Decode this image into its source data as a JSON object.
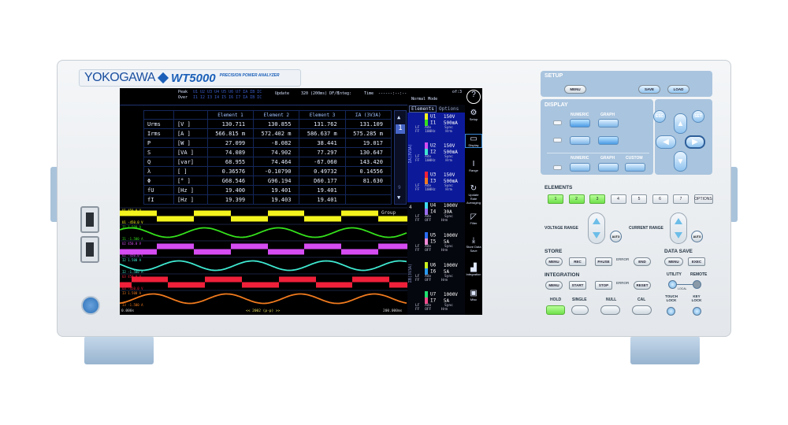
{
  "brand": {
    "logo": "YOKOGAWA",
    "model": "WT5000",
    "tagline": "PRECISION POWER ANALYZER"
  },
  "screen": {
    "header": {
      "peak_label": "Peak",
      "over_label": "Over",
      "peak_codes": "U1 U2 U3 U4 U5 U6 U7 ΣA ΣB ΣC",
      "over_codes": "I1 I2 I3 I4 I5 I6 I7 ΣA ΣB ΣC",
      "update_label": "Update",
      "update_value": "320 (200ms) DF/F",
      "integ_label": "Integ:",
      "time_label": "Time",
      "time_value": "------:--:--",
      "mode": "Normal Mode",
      "page": "of:3"
    },
    "table": {
      "columns": [
        "Element 1",
        "Element 2",
        "Element 3",
        "ΣA (3V3A)"
      ],
      "rows": [
        {
          "name": "Urms",
          "unit": "[V  ]",
          "values": [
            "130.711",
            "130.855",
            "131.762",
            "131.109"
          ]
        },
        {
          "name": "Irms",
          "unit": "[A  ]",
          "values": [
            "566.815 m",
            "572.402 m",
            "586.637 m",
            "575.285 m"
          ]
        },
        {
          "name": "P",
          "unit": "[W  ]",
          "values": [
            "27.099",
            "-8.082",
            "38.441",
            "19.017"
          ]
        },
        {
          "name": "S",
          "unit": "[VA ]",
          "values": [
            "74.089",
            "74.902",
            "77.297",
            "130.647"
          ]
        },
        {
          "name": "Q",
          "unit": "[var]",
          "values": [
            "68.955",
            "74.464",
            "-67.060",
            "143.420"
          ]
        },
        {
          "name": "λ",
          "unit": "[   ]",
          "values": [
            "0.36576",
            "-0.10790",
            "0.49732",
            "0.14556"
          ]
        },
        {
          "name": "Φ",
          "unit": "[°  ]",
          "values": [
            "G68.546",
            "G96.194",
            "D60.177",
            "81.630"
          ]
        },
        {
          "name": "fU",
          "unit": "[Hz ]",
          "values": [
            "19.400",
            "19.401",
            "19.401",
            ""
          ]
        },
        {
          "name": "fI",
          "unit": "[Hz ]",
          "values": [
            "19.399",
            "19.403",
            "19.401",
            ""
          ]
        }
      ],
      "page_number": "1",
      "page_last": "9"
    },
    "waves": {
      "group_label": "Group",
      "start_time": "0.000s",
      "end_time": "200.000ms",
      "center_label": "<< 2002 (p-p) >>",
      "traces": [
        {
          "name": "U1",
          "top": "450.0 V",
          "bottom": "-450.0 V",
          "shape": "square",
          "phase": 0,
          "color": "#f4f41e"
        },
        {
          "name": "I1",
          "top": "1.500 A",
          "bottom": "-1.500 A",
          "shape": "sine",
          "phase": 0.1,
          "color": "#35e01c"
        },
        {
          "name": "U2",
          "top": "450.0 V",
          "bottom": "-450.0 V",
          "shape": "square",
          "phase": 0.5,
          "color": "#d54cf2"
        },
        {
          "name": "I2",
          "top": "1.500 A",
          "bottom": "-1.500 A",
          "shape": "sine",
          "phase": 0.45,
          "color": "#3fe8d0"
        },
        {
          "name": "U3",
          "top": "450.0 V",
          "bottom": "-450.0 V",
          "shape": "square",
          "phase": 0.85,
          "color": "#f0203a"
        },
        {
          "name": "I3",
          "top": "1.500 A",
          "bottom": "-1.500 A",
          "shape": "sine",
          "phase": 0.8,
          "color": "#f07a1e"
        }
      ]
    },
    "elements": {
      "tabs": [
        "Elements",
        "Options"
      ],
      "group_a": "ΣA(3V3A)",
      "group_b": "ΣB(3V3A)",
      "single": "4",
      "items": [
        {
          "u": "U1",
          "ur": "150V",
          "i": "I1",
          "ir": "500mA",
          "uc": "#f4f41e",
          "ic": "#35e01c",
          "lf": "LF",
          "ff": "FF",
          "adv": "Adv",
          "filt": "100Hz",
          "sync": "Sync",
          "hrm": "Hrm"
        },
        {
          "u": "U2",
          "ur": "150V",
          "i": "I2",
          "ir": "500mA",
          "uc": "#d54cf2",
          "ic": "#3fe8d0",
          "lf": "LF",
          "ff": "FF",
          "adv": "Adv",
          "filt": "100Hz",
          "sync": "Sync",
          "hrm": "Hrm"
        },
        {
          "u": "U3",
          "ur": "150V",
          "i": "I3",
          "ir": "500mA",
          "uc": "#f0203a",
          "ic": "#f07a1e",
          "lf": "LF",
          "ff": "FF",
          "adv": "Adv",
          "filt": "100Hz",
          "sync": "Sync",
          "hrm": "Hrm"
        },
        {
          "u": "U4",
          "ur": "1000V",
          "i": "I4",
          "ir": "30A",
          "uc": "#3fd8f0",
          "ic": "#9a6cf0",
          "lf": "LF",
          "ff": "FF",
          "adv": "Adv",
          "filt": "OFF",
          "sync": "Sync",
          "hrm": "Hrm"
        },
        {
          "u": "U5",
          "ur": "1000V",
          "i": "I5",
          "ir": "5A",
          "uc": "#2a6cf0",
          "ic": "#f08ad8",
          "lf": "LF",
          "ff": "FF",
          "adv": "Adv",
          "filt": "OFF",
          "sync": "Sync",
          "hrm": "Hrm"
        },
        {
          "u": "U6",
          "ur": "1000V",
          "i": "I6",
          "ir": "5A",
          "uc": "#c8f01e",
          "ic": "#2a9af0",
          "lf": "LF",
          "ff": "FF",
          "adv": "Adv",
          "filt": "OFF",
          "sync": "Sync",
          "hrm": "Hrm"
        },
        {
          "u": "U7",
          "ur": "1000V",
          "i": "I7",
          "ir": "5A",
          "uc": "#20e070",
          "ic": "#f04a8a",
          "lf": "LF",
          "ff": "FF",
          "adv": "Adv",
          "filt": "OFF",
          "sync": "Sync",
          "hrm": "Hrm"
        }
      ]
    },
    "menu": [
      {
        "label": "",
        "icon": "?"
      },
      {
        "label": "Setup",
        "icon": "⚙"
      },
      {
        "label": "Display",
        "icon": "▭"
      },
      {
        "label": "Range",
        "icon": "I"
      },
      {
        "label": "Update Rate Averaging",
        "icon": "↻"
      },
      {
        "label": "Filter",
        "icon": "◸"
      },
      {
        "label": "Store Data Save",
        "icon": "⤓"
      },
      {
        "label": "Integration",
        "icon": "▟"
      },
      {
        "label": "Misc",
        "icon": "▣"
      }
    ]
  },
  "panel": {
    "setup": "SETUP",
    "menu": "MENU",
    "save": "SAVE",
    "load": "LOAD",
    "display": "DISPLAY",
    "numeric": "NUMERIC",
    "graph": "GRAPH",
    "custom": "CUSTOM",
    "esc": "ESC",
    "set": "SET",
    "elements": "ELEMENTS",
    "element_keys": [
      "1",
      "2",
      "3",
      "4",
      "5",
      "6",
      "7",
      "OPTIONS"
    ],
    "elements_active": [
      "1",
      "2",
      "3"
    ],
    "voltage_range": "VOLTAGE RANGE",
    "current_range": "CURRENT RANGE",
    "auto": "AUTO",
    "store": "STORE",
    "rec": "REC",
    "pause": "PAUSE",
    "error": "ERROR",
    "end": "END",
    "data_save": "DATA SAVE",
    "exec": "EXEC",
    "integration": "INTEGRATION",
    "start": "START",
    "stop": "STOP",
    "reset": "RESET",
    "utility": "UTILITY",
    "remote": "REMOTE",
    "local": "LOCAL",
    "hold": "HOLD",
    "single": "SINGLE",
    "null": "NULL",
    "cal": "CAL",
    "touch_lock": "TOUCH LOCK",
    "key_lock": "KEY LOCK"
  },
  "colors": {
    "accent": "#1b5fb8",
    "panel": "#a9c4de",
    "active_key": "#6fe04a"
  }
}
